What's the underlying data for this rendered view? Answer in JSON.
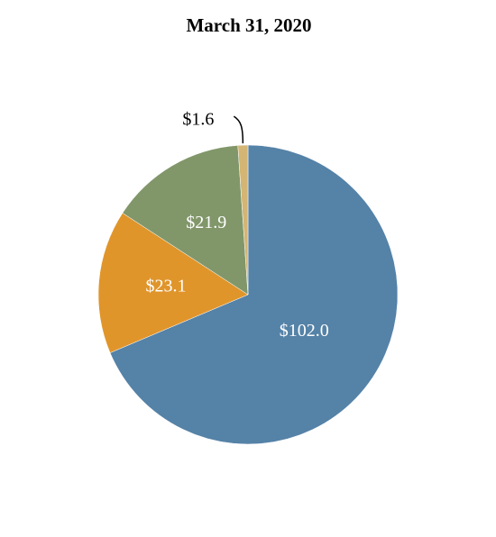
{
  "chart_data": {
    "type": "pie",
    "title": "March 31, 2020",
    "values": [
      102.0,
      23.1,
      21.9,
      1.6
    ],
    "value_labels": [
      "$102.0",
      "$23.1",
      "$21.9",
      "$1.6"
    ],
    "colors": [
      "#5582a7",
      "#e0952b",
      "#81976a",
      "#d4b574"
    ]
  }
}
